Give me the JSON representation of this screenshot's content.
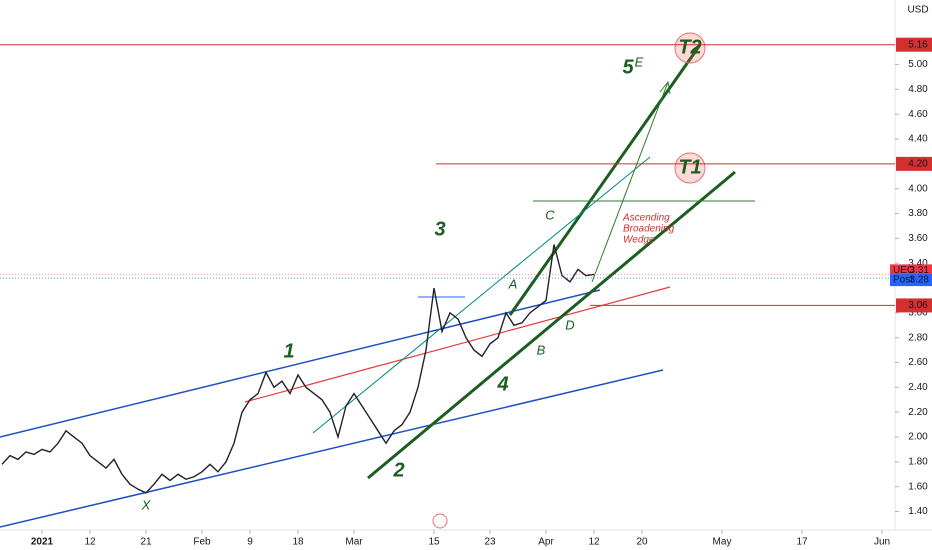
{
  "chart_data": {
    "type": "line",
    "currency": "USD",
    "series": [
      {
        "name": "UEC",
        "color": "#1e222d",
        "x": [
          -5,
          -4,
          -3,
          -2,
          -1,
          0,
          1,
          2,
          3,
          4,
          5,
          6,
          7,
          8,
          9,
          10,
          11,
          12,
          13,
          14,
          15,
          16,
          17,
          18,
          19,
          20,
          21,
          22,
          23,
          24,
          25,
          26,
          27,
          28,
          29,
          30,
          31,
          32,
          33,
          34,
          35,
          36,
          37,
          38,
          39,
          40,
          41,
          42,
          43,
          44,
          45,
          46,
          47,
          48,
          49,
          50,
          51,
          52,
          53,
          54,
          55,
          56,
          57,
          58,
          59,
          60,
          61,
          62,
          63,
          64,
          65,
          66,
          67,
          68,
          69
        ],
        "values": [
          1.78,
          1.85,
          1.82,
          1.88,
          1.86,
          1.9,
          1.88,
          1.95,
          2.05,
          2.0,
          1.95,
          1.85,
          1.8,
          1.75,
          1.82,
          1.7,
          1.62,
          1.58,
          1.55,
          1.62,
          1.7,
          1.65,
          1.7,
          1.66,
          1.68,
          1.72,
          1.78,
          1.72,
          1.8,
          1.95,
          2.2,
          2.3,
          2.35,
          2.52,
          2.4,
          2.45,
          2.35,
          2.5,
          2.4,
          2.35,
          2.3,
          2.2,
          2.0,
          2.25,
          2.35,
          2.25,
          2.15,
          2.05,
          1.95,
          2.05,
          2.1,
          2.2,
          2.4,
          2.7,
          3.2,
          2.85,
          3.0,
          2.95,
          2.8,
          2.7,
          2.65,
          2.75,
          2.8,
          3.0,
          2.9,
          2.92,
          3.0,
          3.05,
          3.1,
          3.55,
          3.3,
          3.25,
          3.35,
          3.3,
          3.31
        ]
      }
    ],
    "xlim": [
      -5.25,
      106.5
    ],
    "ylim": [
      1.09,
      5.52
    ],
    "xticks": [
      {
        "value": 0,
        "label": "2021"
      },
      {
        "value": 6,
        "label": "12"
      },
      {
        "value": 13,
        "label": "21"
      },
      {
        "value": 20,
        "label": "Feb"
      },
      {
        "value": 26,
        "label": "9"
      },
      {
        "value": 32,
        "label": "18"
      },
      {
        "value": 39,
        "label": "Mar"
      },
      {
        "value": 49,
        "label": "15"
      },
      {
        "value": 56,
        "label": "23"
      },
      {
        "value": 63,
        "label": "Apr"
      },
      {
        "value": 69,
        "label": "12"
      },
      {
        "value": 75,
        "label": "20"
      },
      {
        "value": 85,
        "label": "May"
      },
      {
        "value": 95,
        "label": "17"
      },
      {
        "value": 105,
        "label": "Jun"
      }
    ],
    "yticks": [
      {
        "value": 1.4,
        "label": "1.40"
      },
      {
        "value": 1.6,
        "label": "1.60"
      },
      {
        "value": 1.8,
        "label": "1.80"
      },
      {
        "value": 2.0,
        "label": "2.00"
      },
      {
        "value": 2.2,
        "label": "2.20"
      },
      {
        "value": 2.4,
        "label": "2.40"
      },
      {
        "value": 2.6,
        "label": "2.60"
      },
      {
        "value": 2.8,
        "label": "2.80"
      },
      {
        "value": 3.0,
        "label": "3.00"
      },
      {
        "value": 3.4,
        "label": "3.40"
      },
      {
        "value": 3.6,
        "label": "3.60"
      },
      {
        "value": 3.8,
        "label": "3.80"
      },
      {
        "value": 4.0,
        "label": "4.00"
      },
      {
        "value": 4.4,
        "label": "4.40"
      },
      {
        "value": 4.6,
        "label": "4.60"
      },
      {
        "value": 4.8,
        "label": "4.80"
      },
      {
        "value": 5.0,
        "label": "5.00"
      }
    ],
    "levels": [
      5.16,
      {
        "value": 4.2,
        "label": "4.20"
      },
      3.06
    ],
    "level_color": "#d32f2f",
    "price_tags": [
      {
        "label": "UEC",
        "value": 3.31,
        "color": "#f23645"
      },
      {
        "label": "Post",
        "value": 3.28,
        "color": "#2962ff"
      }
    ],
    "annotations": [
      "1",
      "2",
      "3",
      "4",
      "5",
      "E",
      "A",
      "B",
      "C",
      "D",
      "X",
      "T1",
      "T2"
    ],
    "wedge_label": [
      "Ascending",
      "Broadening",
      "Wedge"
    ]
  }
}
